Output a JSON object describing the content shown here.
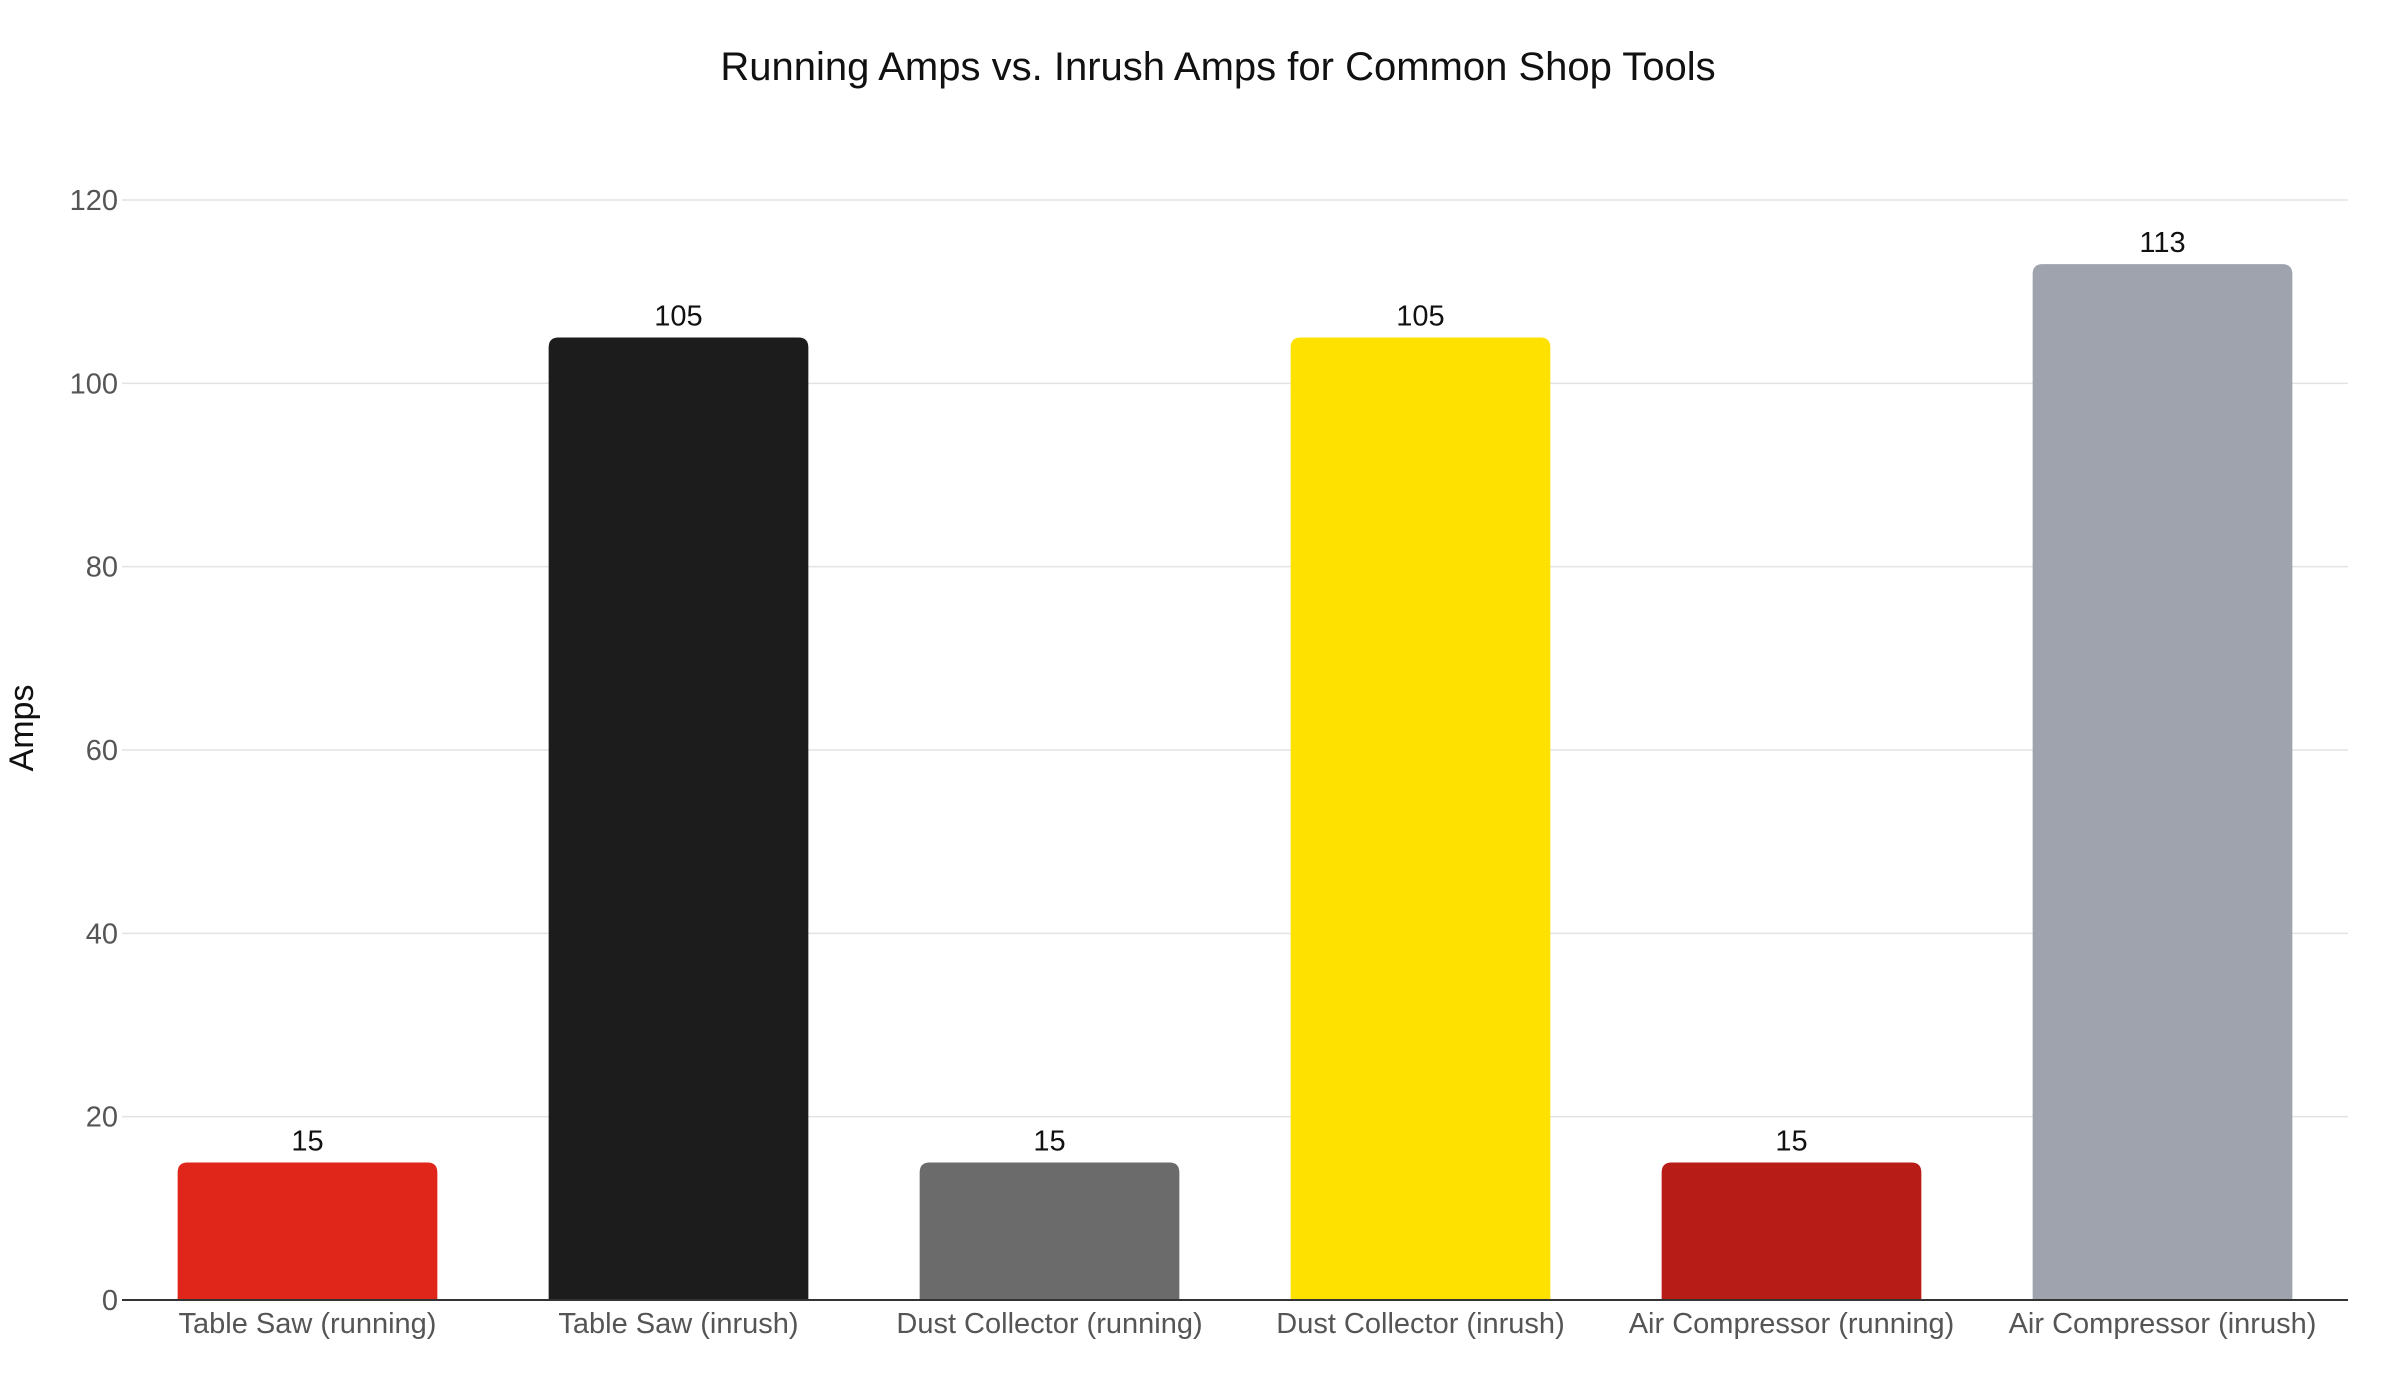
{
  "chart_data": {
    "type": "bar",
    "title": "Running Amps vs. Inrush Amps for Common Shop Tools",
    "xlabel": "",
    "ylabel": "Amps",
    "ylim": [
      0,
      120
    ],
    "yticks": [
      0,
      20,
      40,
      60,
      80,
      100,
      120
    ],
    "grid": true,
    "legend": "none",
    "categories": [
      "Table Saw (running)",
      "Table Saw (inrush)",
      "Dust Collector (running)",
      "Dust Collector (inrush)",
      "Air Compressor (running)",
      "Air Compressor (inrush)"
    ],
    "values": [
      15,
      105,
      15,
      105,
      15,
      113
    ],
    "data_labels": [
      "15",
      "105",
      "15",
      "105",
      "15",
      "113"
    ],
    "colors": [
      "#e0251b",
      "#1c1c1c",
      "#6b6b6b",
      "#ffe100",
      "#b71c17",
      "#9ea3ae"
    ]
  }
}
